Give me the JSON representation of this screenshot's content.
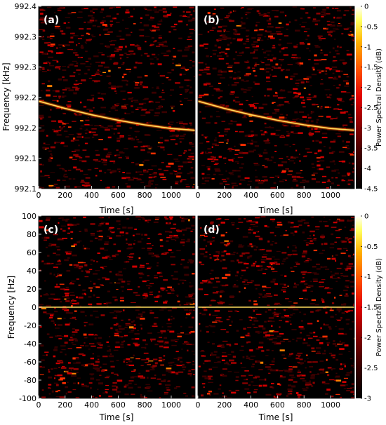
{
  "chart_data": [
    {
      "type": "heatmap",
      "panel_label": "(a)",
      "xlabel": "Time [s]",
      "ylabel": "Frequency [kHz]",
      "x_ticks": [
        "0",
        "200",
        "400",
        "600",
        "800",
        "1000"
      ],
      "y_ticks": [
        "992.4",
        "992.3",
        "992.3",
        "992.2",
        "992.2",
        "992.1",
        "992.1"
      ],
      "xlim": [
        0,
        1180
      ],
      "ylim": [
        0,
        1
      ],
      "signal_curve": {
        "x": [
          0,
          200,
          400,
          600,
          800,
          1000,
          1180
        ],
        "y": [
          0.48,
          0.44,
          0.405,
          0.375,
          0.35,
          0.33,
          0.32
        ]
      },
      "colorbar": {
        "label": "",
        "ticks": []
      }
    },
    {
      "type": "heatmap",
      "panel_label": "(b)",
      "xlabel": "Time [s]",
      "ylabel": "",
      "x_ticks": [
        "0",
        "200",
        "400",
        "600",
        "800",
        "1000"
      ],
      "y_ticks": [],
      "xlim": [
        0,
        1180
      ],
      "ylim": [
        0,
        1
      ],
      "signal_curve": {
        "x": [
          0,
          200,
          400,
          600,
          800,
          1000,
          1180
        ],
        "y": [
          0.48,
          0.44,
          0.405,
          0.375,
          0.35,
          0.33,
          0.32
        ]
      },
      "colorbar": {
        "label": "Power Spectral Density (dB)",
        "ticks": [
          "0",
          "-0.5",
          "-1",
          "-1.5",
          "-2",
          "-2.5",
          "-3",
          "-3.5",
          "-4",
          "-4.5"
        ]
      }
    },
    {
      "type": "heatmap",
      "panel_label": "(c)",
      "xlabel": "Time [s]",
      "ylabel": "Frequency [Hz]",
      "x_ticks": [
        "0",
        "200",
        "400",
        "600",
        "800",
        "1000"
      ],
      "y_ticks": [
        "100",
        "80",
        "60",
        "40",
        "20",
        "0",
        "-20",
        "-40",
        "-60",
        "-80",
        "-100"
      ],
      "xlim": [
        0,
        1180
      ],
      "ylim": [
        -100,
        100
      ],
      "signal_curve": {
        "x": [
          0,
          1180
        ],
        "y": [
          0,
          0
        ]
      },
      "colorbar": {
        "label": "",
        "ticks": []
      }
    },
    {
      "type": "heatmap",
      "panel_label": "(d)",
      "xlabel": "Time [s]",
      "ylabel": "",
      "x_ticks": [
        "0",
        "200",
        "400",
        "600",
        "800",
        "1000"
      ],
      "y_ticks": [],
      "xlim": [
        0,
        1180
      ],
      "ylim": [
        -100,
        100
      ],
      "signal_curve": {
        "x": [
          0,
          1180
        ],
        "y": [
          0,
          0
        ]
      },
      "colorbar": {
        "label": "Power Spectral Density (dB)",
        "ticks": [
          "0",
          "-0.5",
          "-1",
          "-1.5",
          "-2",
          "-2.5",
          "-3"
        ]
      }
    }
  ],
  "colormap": [
    "#000000",
    "#3a0000",
    "#8b0000",
    "#d00000",
    "#ff3000",
    "#ff8000",
    "#ffd000",
    "#ffff80",
    "#ffffff"
  ]
}
